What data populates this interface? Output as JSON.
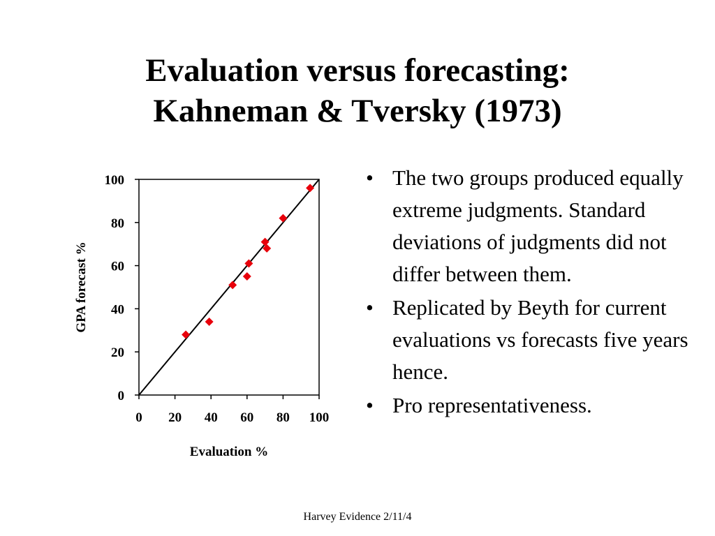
{
  "slide": {
    "title_line1": "Evaluation versus forecasting:",
    "title_line2": "Kahneman & Tversky (1973)",
    "footer": "Harvey Evidence 2/11/4",
    "bullet_glyph": "•",
    "bullets": [
      "The two groups produced equally extreme judgments. Standard deviations of judgments did not differ between them.",
      "Replicated by Beyth for current evaluations vs forecasts five years hence.",
      "Pro representativeness."
    ]
  },
  "chart_data": {
    "type": "scatter",
    "xlabel": "Evaluation %",
    "ylabel": "GPA forecast %",
    "xlim": [
      0,
      100
    ],
    "ylim": [
      0,
      100
    ],
    "x_ticks": [
      0,
      20,
      40,
      60,
      80,
      100
    ],
    "y_ticks": [
      0,
      20,
      40,
      60,
      80,
      100
    ],
    "grid": false,
    "reference_line": {
      "from": [
        0,
        0
      ],
      "to": [
        100,
        100
      ],
      "color": "#000000"
    },
    "marker": {
      "shape": "diamond",
      "color": "#e8000b"
    },
    "points": [
      {
        "x": 26,
        "y": 28
      },
      {
        "x": 39,
        "y": 34
      },
      {
        "x": 52,
        "y": 51
      },
      {
        "x": 60,
        "y": 55
      },
      {
        "x": 61,
        "y": 61
      },
      {
        "x": 70,
        "y": 71
      },
      {
        "x": 71,
        "y": 68
      },
      {
        "x": 80,
        "y": 82
      },
      {
        "x": 95,
        "y": 96
      }
    ]
  }
}
